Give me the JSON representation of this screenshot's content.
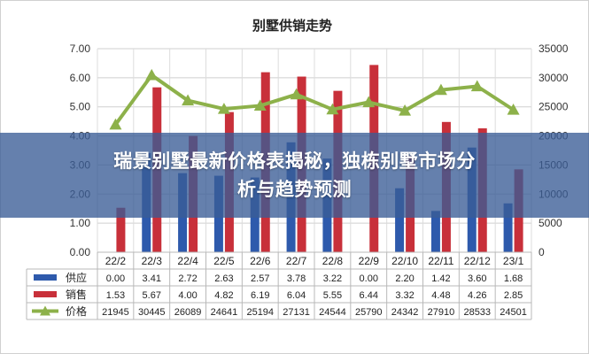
{
  "colors": {
    "supply": "#2E5AAC",
    "sales": "#C8303A",
    "price": "#8DB14A",
    "banner": "#3A5C96"
  },
  "banner": {
    "line1": "瑞景别墅最新价格表揭秘，独栋别墅市场分",
    "line2": "析与趋势预测"
  },
  "chart_data": {
    "type": "bar",
    "title": "别墅供销走势",
    "categories": [
      "22/2",
      "22/3",
      "22/4",
      "22/5",
      "22/6",
      "22/7",
      "22/8",
      "22/9",
      "22/10",
      "22/11",
      "22/12",
      "23/1"
    ],
    "left_axis": {
      "ylim": [
        0,
        7
      ],
      "ticks": [
        "0.00",
        "1.00",
        "2.00",
        "3.00",
        "4.00",
        "5.00",
        "6.00",
        "7.00"
      ]
    },
    "right_axis": {
      "ylim": [
        0,
        35000
      ],
      "ticks": [
        "0",
        "5000",
        "10000",
        "15000",
        "20000",
        "25000",
        "30000",
        "35000"
      ]
    },
    "series": [
      {
        "name": "供应",
        "type": "bar",
        "axis": "left",
        "values": [
          0.0,
          3.41,
          2.72,
          2.63,
          2.57,
          3.78,
          3.22,
          0.0,
          2.2,
          1.42,
          3.6,
          1.68
        ],
        "labels": [
          "0.00",
          "3.41",
          "2.72",
          "2.63",
          "2.57",
          "3.78",
          "3.22",
          "0.00",
          "2.20",
          "1.42",
          "3.60",
          "1.68"
        ]
      },
      {
        "name": "销售",
        "type": "bar",
        "axis": "left",
        "values": [
          1.53,
          5.67,
          4.0,
          4.82,
          6.19,
          6.04,
          5.55,
          6.44,
          3.32,
          4.48,
          4.26,
          2.85
        ],
        "labels": [
          "1.53",
          "5.67",
          "4.00",
          "4.82",
          "6.19",
          "6.04",
          "5.55",
          "6.44",
          "3.32",
          "4.48",
          "4.26",
          "2.85"
        ]
      },
      {
        "name": "价格",
        "type": "line",
        "axis": "right",
        "values": [
          21945,
          30445,
          26089,
          24641,
          25194,
          27131,
          24544,
          25790,
          24342,
          27910,
          28533,
          24501
        ],
        "labels": [
          "21945",
          "30445",
          "26089",
          "24641",
          "25194",
          "27131",
          "24544",
          "25790",
          "24342",
          "27910",
          "28533",
          "24501"
        ]
      }
    ],
    "grid": true,
    "legend": "table-below"
  }
}
